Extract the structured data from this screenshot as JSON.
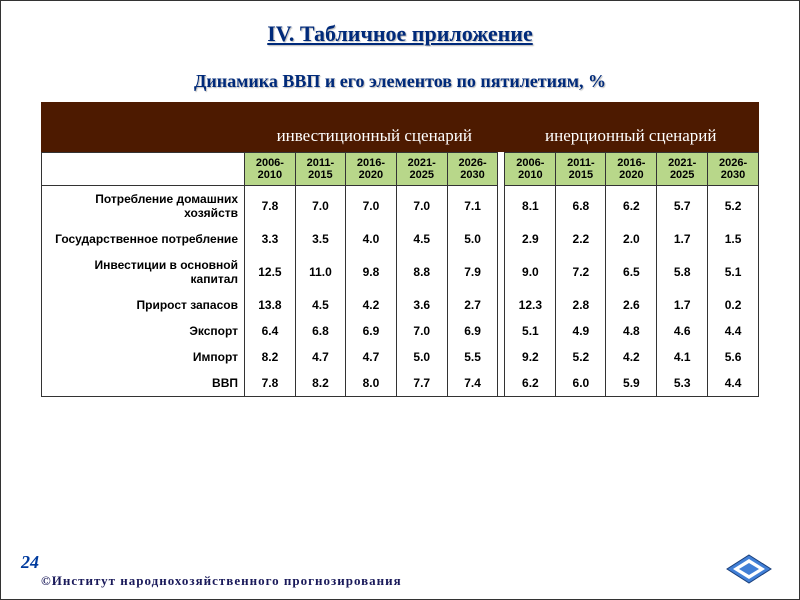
{
  "title": "IV. Табличное приложение",
  "subtitle": "Динамика ВВП и его элементов по пятилетиям, %",
  "scenarios": {
    "left": "инвестиционный сценарий",
    "right": "инерционный сценарий"
  },
  "periods": [
    "2006-2010",
    "2011-2015",
    "2016-2020",
    "2021-2025",
    "2026-2030"
  ],
  "rows": [
    {
      "label": "Потребление домашних хозяйств",
      "left": [
        "7.8",
        "7.0",
        "7.0",
        "7.0",
        "7.1"
      ],
      "right": [
        "8.1",
        "6.8",
        "6.2",
        "5.7",
        "5.2"
      ]
    },
    {
      "label": "Государственное потребление",
      "left": [
        "3.3",
        "3.5",
        "4.0",
        "4.5",
        "5.0"
      ],
      "right": [
        "2.9",
        "2.2",
        "2.0",
        "1.7",
        "1.5"
      ]
    },
    {
      "label": "Инвестиции в основной капитал",
      "left": [
        "12.5",
        "11.0",
        "9.8",
        "8.8",
        "7.9"
      ],
      "right": [
        "9.0",
        "7.2",
        "6.5",
        "5.8",
        "5.1"
      ]
    },
    {
      "label": "Прирост запасов",
      "left": [
        "13.8",
        "4.5",
        "4.2",
        "3.6",
        "2.7"
      ],
      "right": [
        "12.3",
        "2.8",
        "2.6",
        "1.7",
        "0.2"
      ]
    },
    {
      "label": "Экспорт",
      "left": [
        "6.4",
        "6.8",
        "6.9",
        "7.0",
        "6.9"
      ],
      "right": [
        "5.1",
        "4.9",
        "4.8",
        "4.6",
        "4.4"
      ]
    },
    {
      "label": "Импорт",
      "left": [
        "8.2",
        "4.7",
        "4.7",
        "5.0",
        "5.5"
      ],
      "right": [
        "9.2",
        "5.2",
        "4.2",
        "4.1",
        "5.6"
      ]
    },
    {
      "label": "ВВП",
      "left": [
        "7.8",
        "8.2",
        "8.0",
        "7.7",
        "7.4"
      ],
      "right": [
        "6.2",
        "6.0",
        "5.9",
        "5.3",
        "4.4"
      ]
    }
  ],
  "page_number": "24",
  "copyright": "©Институт  народнохозяйственного  прогнозирования",
  "colors": {
    "header_band": "#4d1a00",
    "period_bg": "#b8d78a",
    "title_color": "#002a7a",
    "page_num_color": "#003b9e"
  }
}
